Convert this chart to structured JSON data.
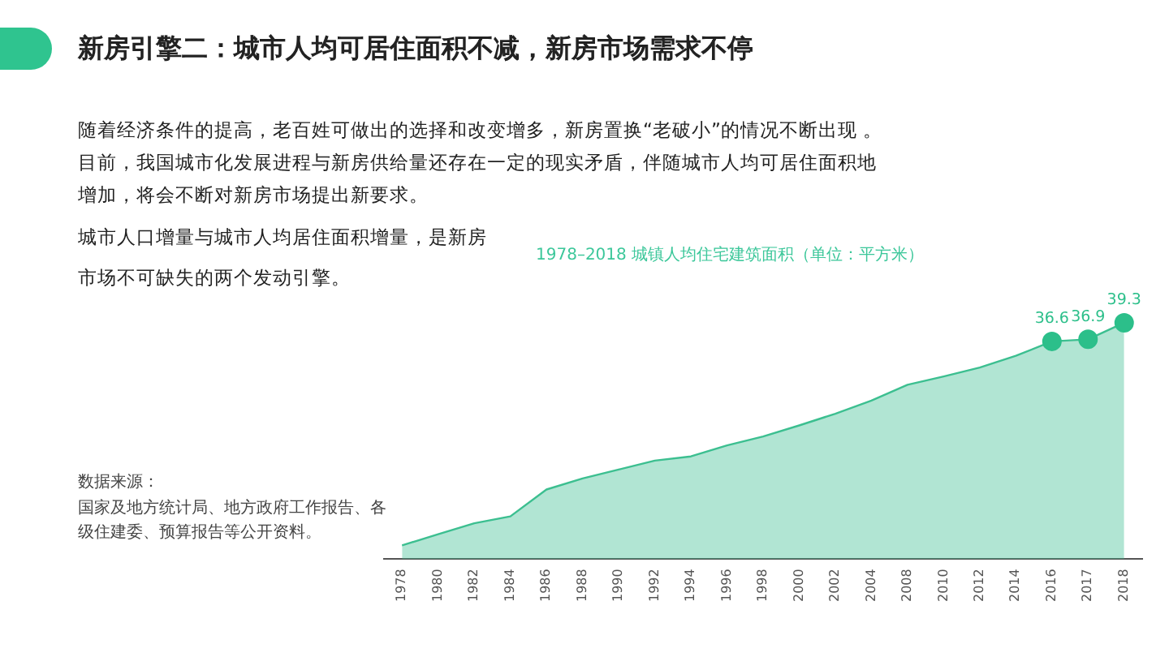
{
  "chart_data": {
    "type": "area",
    "title": "新房引擎二：城市人均可居住面积不减，新房市场需求不停",
    "subtitle": "1978–2018 城镇人均住宅建筑面积（单位：平方米）",
    "annotations": [
      "随着经济条件的提高，老百姓可做出的选择和改变增多，新房置换“老破小”的情况不断出现 。目前，我国城市化发展进程与新房供给量还存在一定的现实矛盾，伴随城市人均可居住面积地增加，将会不断对新房市场提出新要求。",
      "城市人口增量与城市人均居住面积增量，是新房市场不可缺失的两个发动引擎。",
      "数据来源：",
      "国家及地方统计局、地方政府工作报告、各级住建委、预算报告等公开资料。"
    ],
    "categories": [
      "1978",
      "1980",
      "1982",
      "1984",
      "1986",
      "1988",
      "1990",
      "1992",
      "1994",
      "1996",
      "1998",
      "2000",
      "2002",
      "2004",
      "2008",
      "2010",
      "2012",
      "2014",
      "2016",
      "2017",
      "2018"
    ],
    "tick_labels": "x",
    "series": [
      {
        "color": "#3cbf90",
        "values": [
          7,
          8.6,
          10.2,
          11.2,
          15.1,
          16.7,
          18,
          19.3,
          19.9,
          21.5,
          22.8,
          24.4,
          26.1,
          28,
          30.3,
          31.5,
          32.8,
          34.5,
          36.6,
          36.9,
          39.3
        ]
      },
      {
        "type": "scatter",
        "color": "#2cbf8a",
        "marker": "circle",
        "values": [
          null,
          null,
          null,
          null,
          null,
          null,
          null,
          null,
          null,
          null,
          null,
          null,
          null,
          null,
          null,
          null,
          null,
          null,
          36.6,
          36.9,
          39.3
        ],
        "value_labels": [
          null,
          null,
          null,
          null,
          null,
          null,
          null,
          null,
          null,
          null,
          null,
          null,
          null,
          null,
          null,
          null,
          null,
          null,
          "36.6",
          "36.9",
          "39.3"
        ]
      }
    ],
    "grid": false,
    "legend": false
  }
}
